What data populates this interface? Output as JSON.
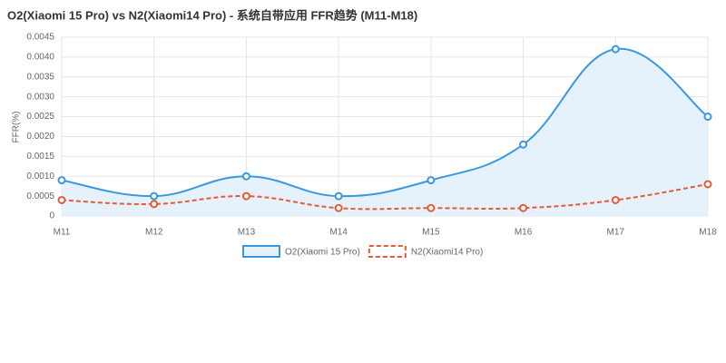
{
  "chart_data": {
    "type": "line",
    "title": "O2(Xiaomi 15 Pro) vs N2(Xiaomi14 Pro) - 系统自带应用 FFR趋势 (M11-M18)",
    "y_label": "FFR(%)",
    "categories": [
      "M11",
      "M12",
      "M13",
      "M14",
      "M15",
      "M16",
      "M17",
      "M18"
    ],
    "series": [
      {
        "name": "O2(Xiaomi 15 Pro)",
        "color": "#3a98e0",
        "fill": "#e6f2fb",
        "dashed": false,
        "values": [
          0.0009,
          0.0005,
          0.001,
          0.0005,
          0.0009,
          0.0018,
          0.0042,
          0.0025
        ]
      },
      {
        "name": "N2(Xiaomi14 Pro)",
        "color": "#e5593c",
        "dashed": true,
        "values": [
          0.0004,
          0.0003,
          0.0005,
          0.0002,
          0.0002,
          0.0002,
          0.0004,
          0.0008
        ]
      }
    ],
    "ylim": [
      0,
      0.0045
    ],
    "yticks": [
      0,
      0.0005,
      {
        "value": 0.001,
        "label": "0.0010"
      },
      0.0015,
      {
        "value": 0.002,
        "label": "0.0020"
      },
      0.0025,
      {
        "value": 0.003,
        "label": "0.0030"
      },
      0.0035,
      {
        "value": 0.004,
        "label": "0.0040"
      },
      0.0045
    ],
    "grid": true
  }
}
